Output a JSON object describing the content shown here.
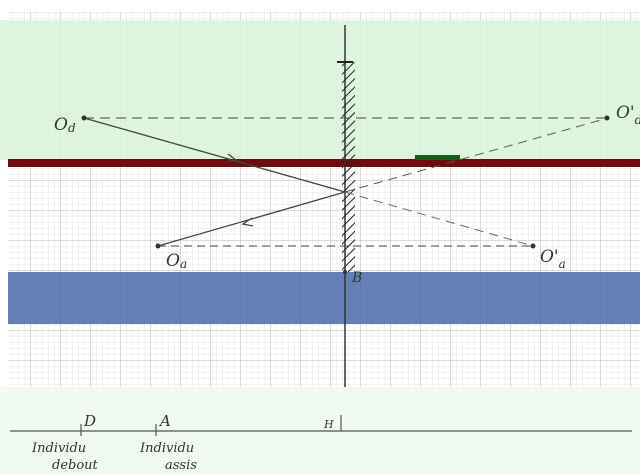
{
  "labels": {
    "od": "O",
    "od_sub": "d",
    "od_prime": "O'",
    "od_prime_sub": "d",
    "oa": "O",
    "oa_sub": "a",
    "oa_prime": "O'",
    "oa_prime_sub": "a",
    "b": "B",
    "h": "H",
    "d": "D",
    "a": "A",
    "standing_line1": "Individu",
    "standing_line2": "debout",
    "seated_line1": "Individu",
    "seated_line2": "assis"
  },
  "colors": {
    "green_band": "#dff5df",
    "red_band": "#6b0d0d",
    "blue_band": "#3b5998",
    "grid": "#c9c9c9",
    "ink": "#333333"
  }
}
